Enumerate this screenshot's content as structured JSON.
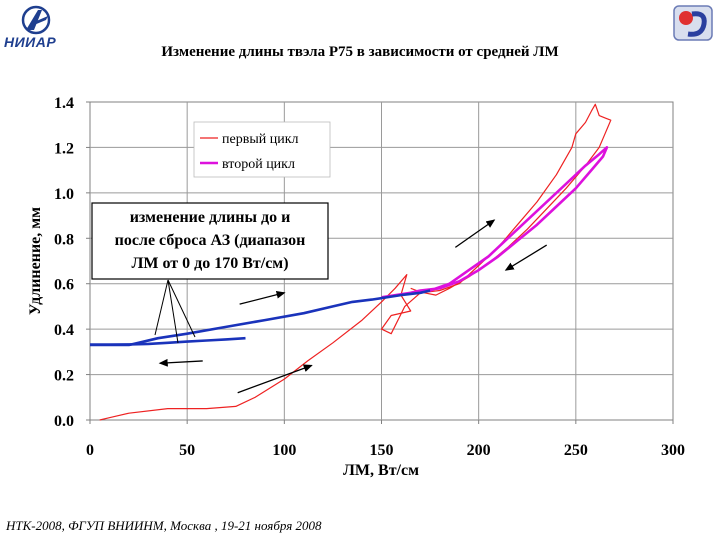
{
  "logos": {
    "left_text": "НИИАР",
    "left_icon": "niiar-logo-icon",
    "right_icon": "institute-logo-icon"
  },
  "footer": "НТК-2008, ФГУП ВНИИНМ, Москва , 19-21 ноября 2008",
  "chart_data": {
    "type": "line",
    "title": "Изменение длины твэла Р75 в зависимости от средней ЛМ",
    "xlabel": "ЛМ, Вт/см",
    "ylabel": "Удлинение, мм",
    "xlim": [
      0,
      300
    ],
    "ylim": [
      0.0,
      1.4
    ],
    "xticks": [
      "0",
      "50",
      "100",
      "150",
      "200",
      "250",
      "300"
    ],
    "yticks": [
      "0.0",
      "0.2",
      "0.4",
      "0.6",
      "0.8",
      "1.0",
      "1.2",
      "1.4"
    ],
    "grid": true,
    "legend_position": "top-right",
    "series": [
      {
        "name": "первый цикл",
        "color": "#ee2222",
        "x": [
          5,
          10,
          20,
          40,
          60,
          75,
          85,
          100,
          112,
          125,
          140,
          150,
          157,
          163,
          160,
          165,
          155,
          150,
          155,
          162,
          170,
          180,
          190,
          200,
          210,
          220,
          230,
          240,
          248,
          250,
          255,
          258,
          260,
          262,
          265,
          268,
          265,
          262,
          255,
          245,
          235,
          225,
          215,
          205,
          195,
          185,
          178,
          172,
          168,
          165
        ],
        "y": [
          0.0,
          0.01,
          0.03,
          0.05,
          0.05,
          0.06,
          0.1,
          0.18,
          0.26,
          0.34,
          0.44,
          0.52,
          0.58,
          0.64,
          0.55,
          0.48,
          0.46,
          0.4,
          0.38,
          0.5,
          0.56,
          0.57,
          0.6,
          0.68,
          0.76,
          0.86,
          0.96,
          1.08,
          1.2,
          1.26,
          1.31,
          1.36,
          1.39,
          1.34,
          1.33,
          1.32,
          1.26,
          1.2,
          1.12,
          1.02,
          0.93,
          0.84,
          0.76,
          0.69,
          0.63,
          0.58,
          0.55,
          0.56,
          0.57,
          0.58
        ]
      },
      {
        "name": "второй цикл",
        "color": "#dd11dd",
        "x": [
          150,
          165,
          175,
          185,
          195,
          205,
          215,
          225,
          235,
          245,
          255,
          262,
          266,
          264,
          258,
          250,
          240,
          230,
          220,
          210,
          200,
          190,
          180,
          170,
          165
        ],
        "y": [
          0.54,
          0.56,
          0.57,
          0.6,
          0.66,
          0.72,
          0.8,
          0.88,
          0.96,
          1.04,
          1.12,
          1.17,
          1.2,
          1.16,
          1.1,
          1.02,
          0.94,
          0.86,
          0.79,
          0.72,
          0.66,
          0.61,
          0.58,
          0.57,
          0.56
        ]
      },
      {
        "name": "",
        "color": "#1a33bb",
        "x": [
          0,
          10,
          20,
          25,
          35,
          50,
          70,
          90,
          110,
          125,
          135,
          145,
          160,
          170,
          175
        ],
        "y": [
          0.33,
          0.33,
          0.33,
          0.34,
          0.36,
          0.38,
          0.41,
          0.44,
          0.47,
          0.5,
          0.52,
          0.53,
          0.55,
          0.56,
          0.57
        ]
      },
      {
        "name": "",
        "color": "#1a33bb",
        "x": [
          80,
          70,
          60,
          50,
          40,
          30,
          20,
          10,
          0
        ],
        "y": [
          0.36,
          0.355,
          0.35,
          0.345,
          0.34,
          0.335,
          0.333,
          0.332,
          0.332
        ]
      }
    ],
    "annotations": [
      {
        "text_lines": [
          "изменение длины до и",
          "после сброса АЗ (диапазон",
          "ЛМ от 0 до 170 Вт/см)"
        ]
      }
    ],
    "arrows": [
      {
        "from": [
          76,
          0.12
        ],
        "to": [
          114,
          0.24
        ]
      },
      {
        "from": [
          77,
          0.51
        ],
        "to": [
          100,
          0.56
        ]
      },
      {
        "from": [
          58,
          0.26
        ],
        "to": [
          36,
          0.25
        ]
      },
      {
        "from": [
          188,
          0.76
        ],
        "to": [
          208,
          0.88
        ]
      },
      {
        "from": [
          235,
          0.77
        ],
        "to": [
          214,
          0.66
        ]
      }
    ]
  }
}
